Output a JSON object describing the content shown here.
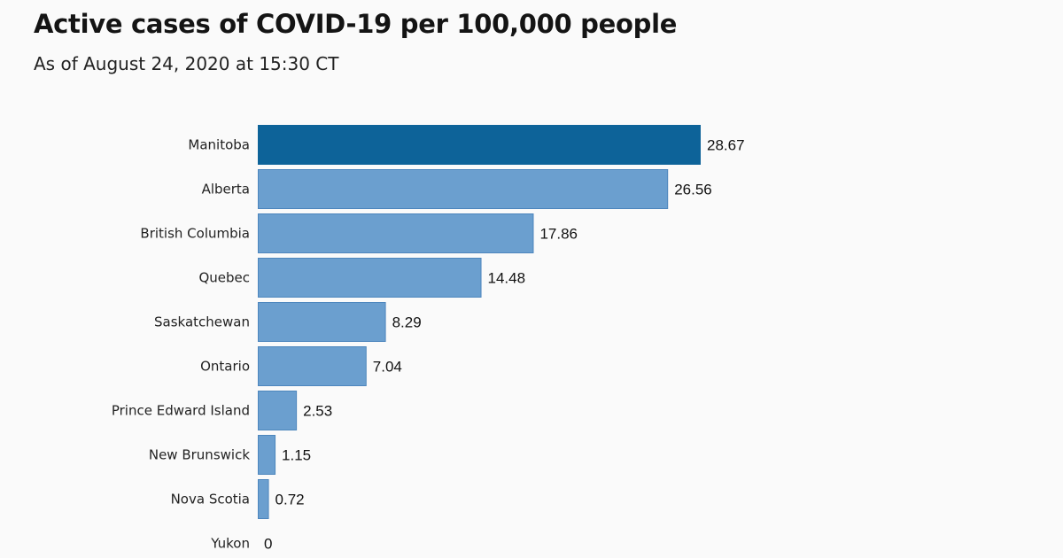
{
  "chart_data": {
    "type": "bar",
    "orientation": "horizontal",
    "title": "Active cases of COVID-19 per 100,000 people",
    "subtitle": "As of August 24, 2020 at 15:30 CT",
    "categories": [
      "Manitoba",
      "Alberta",
      "British Columbia",
      "Quebec",
      "Saskatchewan",
      "Ontario",
      "Prince Edward Island",
      "New Brunswick",
      "Nova Scotia",
      "Yukon"
    ],
    "values": [
      28.67,
      26.56,
      17.86,
      14.48,
      8.29,
      7.04,
      2.53,
      1.15,
      0.72,
      0
    ],
    "value_labels": [
      "28.67",
      "26.56",
      "17.86",
      "14.48",
      "8.29",
      "7.04",
      "2.53",
      "1.15",
      "0.72",
      "0"
    ],
    "highlight": "Manitoba",
    "colors": {
      "highlight": "#0d6399",
      "default": "#6b9fcf",
      "bar_stroke": "#4d86bd"
    },
    "xlim": [
      0,
      28.67
    ],
    "axes_visible": false,
    "grid": false,
    "legend": "none"
  }
}
